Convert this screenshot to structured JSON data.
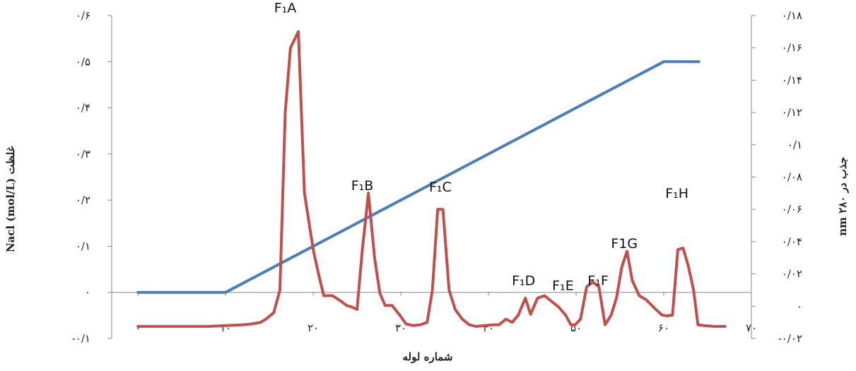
{
  "chart_data": {
    "type": "line",
    "xlabel": "شماره لوله",
    "ylabel_left": "غلظت Nacl (mol/L)",
    "ylabel_right": "جذب در ۲۸۰ nm",
    "x_range": [
      -3,
      70
    ],
    "y_left_range": [
      -0.1,
      0.6
    ],
    "y_right_range": [
      -0.02,
      0.18
    ],
    "x_ticks": [
      {
        "value": 0,
        "label": "۰"
      },
      {
        "value": 10,
        "label": "۱۰"
      },
      {
        "value": 20,
        "label": "۲۰"
      },
      {
        "value": 30,
        "label": "۳۰"
      },
      {
        "value": 40,
        "label": "۴۰"
      },
      {
        "value": 50,
        "label": "۵۰"
      },
      {
        "value": 60,
        "label": "۶۰"
      },
      {
        "value": 70,
        "label": "۷۰"
      }
    ],
    "y_left_ticks": [
      {
        "value": -0.1,
        "label": "-۰/۱"
      },
      {
        "value": 0,
        "label": "۰"
      },
      {
        "value": 0.1,
        "label": "۰/۱"
      },
      {
        "value": 0.2,
        "label": "۰/۲"
      },
      {
        "value": 0.3,
        "label": "۰/۳"
      },
      {
        "value": 0.4,
        "label": "۰/۴"
      },
      {
        "value": 0.5,
        "label": "۰/۵"
      },
      {
        "value": 0.6,
        "label": "۰/۶"
      }
    ],
    "y_right_ticks": [
      {
        "value": -0.02,
        "label": "-۰/۰۲"
      },
      {
        "value": 0,
        "label": "۰"
      },
      {
        "value": 0.02,
        "label": "۰/۰۲"
      },
      {
        "value": 0.04,
        "label": "۰/۰۴"
      },
      {
        "value": 0.06,
        "label": "۰/۰۶"
      },
      {
        "value": 0.08,
        "label": "۰/۰۸"
      },
      {
        "value": 0.1,
        "label": "۰/۱"
      },
      {
        "value": 0.12,
        "label": "۰/۱۲"
      },
      {
        "value": 0.14,
        "label": "۰/۱۴"
      },
      {
        "value": 0.16,
        "label": "۰/۱۶"
      },
      {
        "value": 0.18,
        "label": "۰/۱۸"
      }
    ],
    "series": [
      {
        "axis": "left",
        "color": "#4a7ebb",
        "x": [
          0,
          10,
          60,
          61,
          64
        ],
        "y": [
          0,
          0,
          0.5,
          0.5,
          0.5
        ]
      },
      {
        "axis": "right",
        "color": "#c0504d",
        "x": [
          0,
          8,
          12,
          13,
          14,
          14.6,
          15.5,
          16.2,
          16.8,
          17.4,
          18.3,
          19,
          20,
          20.6,
          21.2,
          22.2,
          23.2,
          23.8,
          24.4,
          25,
          25.6,
          26.3,
          27,
          27.6,
          28.2,
          29,
          29.8,
          30.6,
          31.4,
          32.2,
          33,
          33.6,
          34.2,
          34.8,
          35.5,
          36.2,
          37,
          37.8,
          38.6,
          39.5,
          40.5,
          41.2,
          42,
          42.7,
          43.4,
          44.2,
          44.8,
          45.6,
          46.4,
          47.2,
          48,
          48.8,
          49.4,
          49.9,
          50.5,
          51.2,
          51.9,
          52.6,
          53.3,
          54,
          54.6,
          55.2,
          55.8,
          56.4,
          57.2,
          58,
          59,
          59.8,
          60.4,
          61,
          61.6,
          62.2,
          62.8,
          63.4,
          63.9,
          64.6,
          65.8,
          67
        ],
        "y": [
          -0.0125,
          -0.0125,
          -0.0115,
          -0.011,
          -0.01,
          -0.008,
          -0.004,
          0.01,
          0.12,
          0.16,
          0.17,
          0.07,
          0.035,
          0.02,
          0.0065,
          0.0065,
          0.003,
          0.0005,
          -0.0005,
          -0.002,
          0.035,
          0.07,
          0.03,
          0.008,
          0.0005,
          0.0005,
          -0.005,
          -0.011,
          -0.012,
          -0.0115,
          -0.01,
          0.01,
          0.06,
          0.06,
          0.01,
          -0.002,
          -0.008,
          -0.0115,
          -0.0125,
          -0.012,
          -0.0115,
          -0.0115,
          -0.008,
          -0.01,
          -0.0055,
          0.005,
          -0.005,
          0.005,
          0.0065,
          0.003,
          -0.0005,
          -0.0055,
          -0.0115,
          -0.0115,
          -0.008,
          0.012,
          0.015,
          0.012,
          -0.0115,
          -0.0055,
          0.005,
          0.024,
          0.034,
          0.016,
          0.0065,
          0.004,
          -0.0015,
          -0.0055,
          -0.006,
          -0.0055,
          0.035,
          0.036,
          0.025,
          0.01,
          -0.0115,
          -0.012,
          -0.0125,
          -0.0125
        ]
      }
    ],
    "annotations": [
      {
        "text": "F₁A",
        "x": 16.8,
        "y": 0.182
      },
      {
        "text": "F₁B",
        "x": 25.6,
        "y": 0.072
      },
      {
        "text": "F₁C",
        "x": 34.5,
        "y": 0.071
      },
      {
        "text": "F₁D",
        "x": 44.0,
        "y": 0.013
      },
      {
        "text": "F₁E",
        "x": 48.5,
        "y": 0.01
      },
      {
        "text": "F₁F",
        "x": 52.5,
        "y": 0.013
      },
      {
        "text": "F1G",
        "x": 55.5,
        "y": 0.036
      },
      {
        "text": "F₁H",
        "x": 61.5,
        "y": 0.067
      }
    ]
  }
}
